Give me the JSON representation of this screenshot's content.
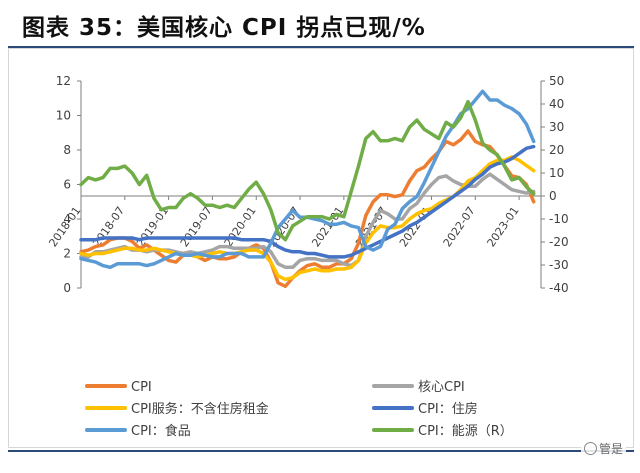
{
  "figure": {
    "title": "图表 35：美国核心 CPI 拐点已现/%",
    "watermark": "管是"
  },
  "chart_data": {
    "type": "line",
    "title": "美国核心 CPI 拐点已现/%",
    "x_ticks": [
      "2018-01",
      "2018-07",
      "2019-01",
      "2019-07",
      "2020-01",
      "2020-07",
      "2021-01",
      "2021-07",
      "2022-01",
      "2022-07",
      "2023-01"
    ],
    "x_range": [
      "2018-01",
      "2023-04"
    ],
    "y_left": {
      "min": 0,
      "max": 12,
      "ticks": [
        0,
        2,
        4,
        6,
        8,
        10,
        12
      ]
    },
    "y_right": {
      "min": -40,
      "max": 50,
      "ticks": [
        -40,
        -30,
        -20,
        -10,
        0,
        10,
        20,
        30,
        40,
        50
      ]
    },
    "grid": false,
    "legend_position": "bottom",
    "series": [
      {
        "name": "CPI",
        "color": "#ed7d31",
        "axis": "left",
        "values": [
          2.1,
          2.2,
          2.4,
          2.5,
          2.8,
          2.9,
          2.9,
          2.7,
          2.3,
          2.5,
          2.2,
          1.9,
          1.6,
          1.5,
          1.9,
          2.0,
          1.8,
          1.6,
          1.8,
          1.7,
          1.7,
          1.8,
          2.1,
          2.3,
          2.5,
          2.3,
          1.5,
          0.3,
          0.1,
          0.6,
          1.0,
          1.3,
          1.4,
          1.2,
          1.2,
          1.4,
          1.4,
          1.7,
          2.6,
          4.2,
          5.0,
          5.4,
          5.4,
          5.3,
          5.4,
          6.2,
          6.8,
          7.0,
          7.5,
          7.9,
          8.5,
          8.3,
          8.6,
          9.1,
          8.5,
          8.3,
          8.2,
          7.7,
          7.1,
          6.5,
          6.4,
          6.0,
          5.0
        ]
      },
      {
        "name": "核心CPI",
        "color": "#a5a5a5",
        "axis": "left",
        "values": [
          1.8,
          1.8,
          2.1,
          2.1,
          2.2,
          2.3,
          2.4,
          2.2,
          2.2,
          2.1,
          2.2,
          2.2,
          2.2,
          2.1,
          2.0,
          2.1,
          2.0,
          2.1,
          2.2,
          2.4,
          2.4,
          2.3,
          2.3,
          2.3,
          2.3,
          2.4,
          2.1,
          1.4,
          1.2,
          1.2,
          1.6,
          1.7,
          1.7,
          1.6,
          1.6,
          1.6,
          1.4,
          1.3,
          1.6,
          3.0,
          3.8,
          4.5,
          4.3,
          4.0,
          4.0,
          4.6,
          4.9,
          5.5,
          6.0,
          6.4,
          6.5,
          6.2,
          6.0,
          5.9,
          5.9,
          6.3,
          6.6,
          6.3,
          6.0,
          5.7,
          5.6,
          5.5,
          5.6
        ]
      },
      {
        "name": "CPI服务：不含住房租金",
        "color": "#ffc000",
        "axis": "left",
        "values": [
          2.0,
          1.9,
          2.0,
          2.0,
          2.1,
          2.2,
          2.3,
          2.3,
          2.2,
          2.2,
          2.3,
          2.2,
          2.1,
          2.0,
          1.9,
          1.9,
          1.8,
          1.9,
          2.0,
          2.1,
          2.0,
          2.0,
          2.1,
          2.2,
          2.2,
          2.0,
          1.5,
          0.7,
          0.5,
          0.6,
          0.9,
          1.0,
          1.1,
          1.0,
          1.0,
          1.1,
          1.1,
          1.2,
          1.6,
          2.6,
          3.2,
          3.6,
          3.5,
          3.5,
          3.6,
          4.0,
          4.3,
          4.5,
          4.6,
          4.9,
          5.1,
          5.3,
          5.7,
          6.2,
          6.4,
          6.8,
          7.2,
          7.4,
          7.4,
          7.6,
          7.4,
          7.1,
          6.8
        ]
      },
      {
        "name": "CPI：住房",
        "color": "#4472c4",
        "axis": "left",
        "values": [
          2.8,
          2.8,
          2.8,
          2.9,
          2.9,
          2.9,
          2.9,
          2.9,
          2.8,
          2.9,
          2.9,
          2.9,
          2.9,
          2.9,
          2.9,
          2.9,
          2.9,
          2.9,
          2.9,
          2.9,
          2.9,
          2.9,
          2.8,
          2.8,
          2.8,
          2.8,
          2.7,
          2.4,
          2.2,
          2.1,
          2.1,
          2.0,
          2.0,
          1.9,
          1.8,
          1.8,
          1.8,
          1.9,
          2.1,
          2.3,
          2.5,
          2.7,
          2.9,
          3.1,
          3.3,
          3.6,
          3.8,
          4.1,
          4.4,
          4.7,
          5.0,
          5.3,
          5.6,
          5.9,
          6.3,
          6.6,
          7.0,
          7.2,
          7.3,
          7.5,
          7.8,
          8.1,
          8.2
        ]
      },
      {
        "name": "CPI：食品",
        "color": "#5b9bd5",
        "axis": "left",
        "values": [
          1.7,
          1.6,
          1.5,
          1.3,
          1.2,
          1.4,
          1.4,
          1.4,
          1.4,
          1.3,
          1.4,
          1.6,
          1.8,
          2.0,
          1.9,
          1.9,
          2.0,
          1.9,
          1.8,
          1.8,
          2.0,
          2.0,
          2.0,
          1.8,
          1.8,
          1.8,
          2.6,
          3.5,
          4.0,
          4.5,
          4.1,
          4.1,
          4.0,
          3.9,
          3.7,
          3.7,
          3.8,
          3.6,
          3.5,
          2.4,
          2.2,
          2.4,
          3.4,
          3.7,
          4.6,
          5.0,
          5.3,
          6.1,
          7.0,
          7.9,
          8.8,
          9.4,
          10.1,
          10.4,
          10.9,
          11.4,
          10.9,
          10.9,
          10.6,
          10.4,
          10.1,
          9.5,
          8.5
        ]
      },
      {
        "name": "CPI：能源（R）",
        "color": "#70ad47",
        "axis": "right",
        "values": [
          5,
          8,
          7,
          8,
          12,
          12,
          13,
          10,
          5,
          9,
          -1,
          -6,
          -5,
          -5,
          -1,
          1,
          -1,
          -4,
          -4,
          -5,
          -4,
          -5,
          -1,
          3,
          6,
          1,
          -6,
          -16,
          -19,
          -13,
          -11,
          -9,
          -9,
          -9,
          -10,
          -8,
          -9,
          2,
          13,
          25,
          28,
          24,
          24,
          25,
          24,
          30,
          33,
          29,
          27,
          25,
          32,
          30,
          34,
          41,
          33,
          23,
          20,
          18,
          13,
          7,
          8,
          4,
          1
        ]
      }
    ],
    "legend": [
      "CPI",
      "核心CPI",
      "CPI服务：不含住房租金",
      "CPI：住房",
      "CPI：食品",
      "CPI：能源（R）"
    ]
  }
}
